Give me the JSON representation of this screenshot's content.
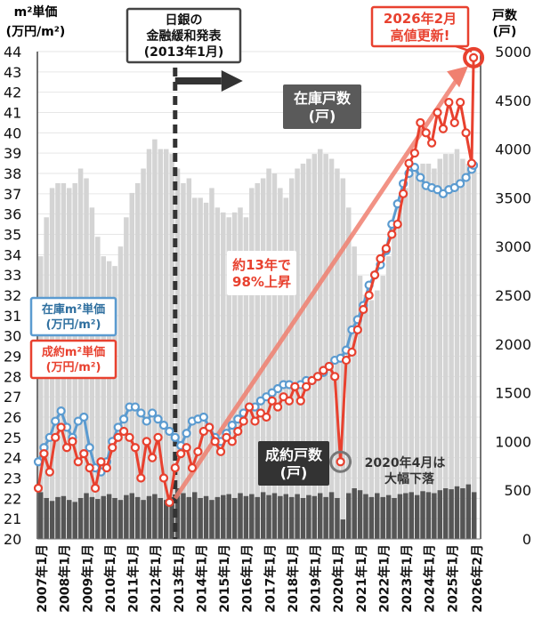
{
  "chart_data": {
    "type": "bar+line",
    "left_axis_label": [
      "m²単価",
      "(万円/m²)"
    ],
    "right_axis_label": [
      "戸数",
      "(戸)"
    ],
    "ylim_left": [
      20,
      44
    ],
    "ylim_right": [
      0,
      5000
    ],
    "yticks_left": [
      20,
      21,
      22,
      23,
      24,
      25,
      26,
      27,
      28,
      29,
      30,
      31,
      32,
      33,
      34,
      35,
      36,
      37,
      38,
      39,
      40,
      41,
      42,
      43,
      44
    ],
    "yticks_right": [
      0,
      500,
      1000,
      1500,
      2000,
      2500,
      3000,
      3500,
      4000,
      4500,
      5000
    ],
    "xtick_labels": [
      "2007年1月",
      "2008年1月",
      "2009年1月",
      "2010年1月",
      "2011年1月",
      "2012年1月",
      "2013年1月",
      "2014年1月",
      "2015年1月",
      "2016年1月",
      "2017年1月",
      "2018年1月",
      "2019年1月",
      "2020年1月",
      "2021年1月",
      "2022年1月",
      "2023年1月",
      "2024年1月",
      "2025年1月",
      "2026年2月"
    ],
    "grid": true,
    "dates": [
      "2007-01",
      "2007-04",
      "2007-07",
      "2007-10",
      "2008-01",
      "2008-04",
      "2008-07",
      "2008-10",
      "2009-01",
      "2009-04",
      "2009-07",
      "2009-10",
      "2010-01",
      "2010-04",
      "2010-07",
      "2010-10",
      "2011-01",
      "2011-04",
      "2011-07",
      "2011-10",
      "2012-01",
      "2012-04",
      "2012-07",
      "2012-10",
      "2013-01",
      "2013-04",
      "2013-07",
      "2013-10",
      "2014-01",
      "2014-04",
      "2014-07",
      "2014-10",
      "2015-01",
      "2015-04",
      "2015-07",
      "2015-10",
      "2016-01",
      "2016-04",
      "2016-07",
      "2016-10",
      "2017-01",
      "2017-04",
      "2017-07",
      "2017-10",
      "2018-01",
      "2018-04",
      "2018-07",
      "2018-10",
      "2019-01",
      "2019-04",
      "2019-07",
      "2019-10",
      "2020-01",
      "2020-04",
      "2020-07",
      "2020-10",
      "2021-01",
      "2021-04",
      "2021-07",
      "2021-10",
      "2022-01",
      "2022-04",
      "2022-07",
      "2022-10",
      "2023-01",
      "2023-04",
      "2023-07",
      "2023-10",
      "2024-01",
      "2024-04",
      "2024-07",
      "2024-10",
      "2025-01",
      "2025-04",
      "2025-07",
      "2025-10",
      "2026-01",
      "2026-02"
    ],
    "series": [
      {
        "name": "在庫m²単価(万円/m²)",
        "axis": "left",
        "kind": "line",
        "color": "#5b9bd0",
        "values": [
          23.8,
          24.5,
          25.0,
          25.8,
          26.3,
          25.5,
          25.0,
          25.8,
          26.0,
          24.5,
          23.5,
          23.3,
          23.8,
          24.8,
          25.5,
          25.9,
          26.5,
          26.5,
          26.2,
          25.8,
          26.2,
          25.9,
          25.6,
          25.3,
          25.0,
          24.6,
          25.2,
          25.8,
          25.9,
          26.0,
          25.5,
          25.0,
          24.8,
          25.2,
          25.6,
          25.9,
          26.2,
          26.5,
          26.5,
          26.8,
          27.0,
          27.2,
          27.4,
          27.6,
          27.6,
          27.5,
          27.6,
          27.8,
          27.8,
          28.0,
          28.2,
          28.5,
          28.8,
          28.9,
          29.3,
          30.3,
          30.8,
          31.5,
          32.5,
          33.0,
          33.5,
          34.2,
          35.5,
          36.5,
          37.5,
          38.0,
          38.3,
          37.8,
          37.4,
          37.3,
          37.2,
          37.0,
          37.2,
          37.3,
          37.5,
          37.8,
          38.2,
          38.4
        ]
      },
      {
        "name": "成約m²単価(万円/m²)",
        "axis": "left",
        "kind": "line",
        "color": "#e8412f",
        "values": [
          22.5,
          24.2,
          23.3,
          25.0,
          25.5,
          24.5,
          24.8,
          23.8,
          24.2,
          23.5,
          22.5,
          23.8,
          23.5,
          24.5,
          25.0,
          25.3,
          25.0,
          24.5,
          23.0,
          24.8,
          24.0,
          25.0,
          23.0,
          21.8,
          23.5,
          24.2,
          24.5,
          23.5,
          24.3,
          25.3,
          25.5,
          24.8,
          24.3,
          25.0,
          24.8,
          25.3,
          25.8,
          26.5,
          25.8,
          26.2,
          26.0,
          26.8,
          26.5,
          27.0,
          26.8,
          27.5,
          26.8,
          27.5,
          27.8,
          28.0,
          28.3,
          28.5,
          28.0,
          23.8,
          28.8,
          29.2,
          30.3,
          31.3,
          32.0,
          33.0,
          33.8,
          34.3,
          35.0,
          35.5,
          37.0,
          38.5,
          39.0,
          40.5,
          40.0,
          39.5,
          41.0,
          40.2,
          41.5,
          40.5,
          41.5,
          40.0,
          38.5,
          43.7
        ]
      },
      {
        "name": "在庫戸数(戸)",
        "axis": "right",
        "kind": "bar",
        "color": "#d4d4d4",
        "values": [
          2900,
          3300,
          3600,
          3650,
          3650,
          3600,
          3650,
          3800,
          3700,
          3400,
          3100,
          2900,
          2850,
          2800,
          3000,
          3300,
          3550,
          3650,
          3800,
          4000,
          4100,
          4000,
          4000,
          3950,
          3800,
          3650,
          3700,
          3500,
          3500,
          3450,
          3600,
          3400,
          3350,
          3300,
          3350,
          3400,
          3300,
          3600,
          3650,
          3700,
          3800,
          3750,
          3600,
          3500,
          3700,
          3800,
          3850,
          3900,
          3950,
          4000,
          3950,
          3900,
          3800,
          3700,
          3400,
          3000,
          2700,
          2500,
          2450,
          2550,
          2700,
          2900,
          3200,
          3400,
          3600,
          3750,
          3800,
          3850,
          3850,
          3800,
          3900,
          3950,
          3950,
          4000,
          3900,
          3850,
          3800,
          3750
        ]
      },
      {
        "name": "成約戸数(戸)",
        "axis": "right",
        "kind": "bar",
        "color": "#555555",
        "values": [
          480,
          420,
          390,
          430,
          440,
          400,
          380,
          420,
          470,
          430,
          410,
          440,
          460,
          420,
          400,
          450,
          470,
          430,
          400,
          440,
          460,
          420,
          400,
          430,
          520,
          470,
          430,
          480,
          420,
          440,
          400,
          430,
          450,
          460,
          420,
          470,
          440,
          460,
          430,
          480,
          450,
          470,
          440,
          460,
          430,
          460,
          420,
          450,
          440,
          470,
          430,
          480,
          420,
          200,
          470,
          520,
          500,
          460,
          430,
          470,
          430,
          450,
          420,
          460,
          470,
          480,
          450,
          490,
          480,
          470,
          500,
          520,
          510,
          540,
          520,
          560,
          480,
          470
        ]
      }
    ],
    "annotations": {
      "boj_box": [
        "日銀の",
        "金融緩和発表",
        "(2013年1月)"
      ],
      "boj_date": "2013-01",
      "inventory_count_label": [
        "在庫戸数",
        "(戸)"
      ],
      "contract_count_label": [
        "成約戸数",
        "(戸)"
      ],
      "inventory_price_label": [
        "在庫m²単価",
        "(万円/m²)"
      ],
      "contract_price_label": [
        "成約m²単価",
        "(万円/m²)"
      ],
      "trend_label": [
        "約13年で",
        "98%上昇"
      ],
      "covid_label": [
        "2020年4月は",
        "大幅下落"
      ],
      "peak_label": [
        "2026年2月",
        "高値更新!"
      ]
    }
  }
}
